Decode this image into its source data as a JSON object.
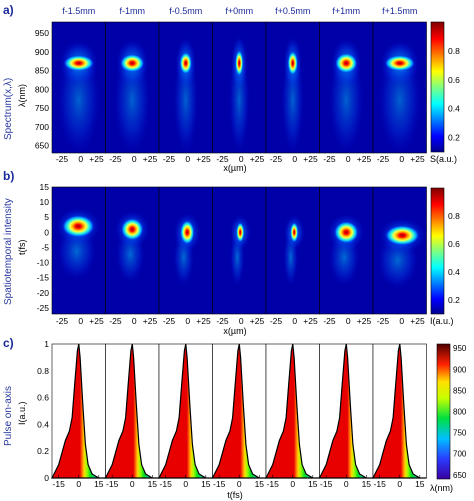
{
  "panels": {
    "a": {
      "label": "a)",
      "side_label": "Spectrum(x,λ)",
      "y_label": "λ(nm)",
      "x_label": "x(µm)",
      "column_titles": [
        "f-1.5mm",
        "f-1mm",
        "f-0.5mm",
        "f+0mm",
        "f+0.5mm",
        "f+1mm",
        "f+1.5mm"
      ],
      "y_ticks": [
        "950",
        "900",
        "850",
        "800",
        "750",
        "700",
        "650"
      ],
      "x_tick_labels": [
        "-25",
        "0",
        "+25"
      ],
      "colorbar_ticks": [
        "0.8",
        "0.6",
        "0.4",
        "0.2"
      ],
      "colorbar_label": "S(a.u.)"
    },
    "b": {
      "label": "b)",
      "side_label": "Spatiotemporal intensity",
      "y_label": "t(fs)",
      "x_label": "x(µm)",
      "y_ticks": [
        "15",
        "10",
        "5",
        "0",
        "-5",
        "-10",
        "-15",
        "-20",
        "-25"
      ],
      "x_tick_labels": [
        "-25",
        "0",
        "+25"
      ],
      "colorbar_ticks": [
        "0.8",
        "0.6",
        "0.4",
        "0.2"
      ],
      "colorbar_label": "I(a.u.)"
    },
    "c": {
      "label": "c)",
      "side_label": "Pulse on-axis",
      "y_label": "I(a.u.)",
      "x_label": "t(fs)",
      "y_ticks": [
        "1",
        "0.8",
        "0.6",
        "0.4",
        "0.2",
        "0"
      ],
      "x_tick_labels": [
        "-15",
        "0",
        "15"
      ],
      "colorbar_ticks": [
        "950",
        "900",
        "850",
        "800",
        "750",
        "700",
        "650"
      ],
      "colorbar_label": "λ(nm)"
    }
  },
  "chart_data": [
    {
      "type": "heatmap",
      "panel": "a",
      "description_values": "spectral peak per column (x µm, λ nm, relative width)",
      "columns": [
        "f-1.5mm",
        "f-1mm",
        "f-0.5mm",
        "f+0mm",
        "f+0.5mm",
        "f+1mm",
        "f+1.5mm"
      ],
      "peak_wavelength_nm": [
        870,
        870,
        870,
        870,
        870,
        870,
        870
      ],
      "peak_x_um": [
        0,
        0,
        0,
        0,
        0,
        0,
        0
      ],
      "xlim": [
        -40,
        40
      ],
      "ylim": [
        630,
        980
      ],
      "colorbar_range": [
        0.1,
        1.0
      ]
    },
    {
      "type": "heatmap",
      "panel": "b",
      "columns": [
        "f-1.5mm",
        "f-1mm",
        "f-0.5mm",
        "f+0mm",
        "f+0.5mm",
        "f+1mm",
        "f+1.5mm"
      ],
      "peak_time_fs": [
        2,
        1,
        0,
        0,
        0,
        0,
        -1
      ],
      "xlim": [
        -40,
        40
      ],
      "ylim": [
        -27,
        15
      ],
      "colorbar_range": [
        0.1,
        1.0
      ]
    },
    {
      "type": "area",
      "panel": "c",
      "columns": [
        "f-1.5mm",
        "f-1mm",
        "f-0.5mm",
        "f+0mm",
        "f+0.5mm",
        "f+1mm",
        "f+1.5mm"
      ],
      "x": [
        -20,
        -15,
        -10,
        -7,
        -5,
        -3,
        -1,
        0,
        1,
        3,
        5,
        7,
        10,
        15,
        20
      ],
      "series": [
        {
          "values": [
            0,
            0.1,
            0.28,
            0.35,
            0.45,
            0.7,
            0.95,
            1.0,
            0.9,
            0.55,
            0.25,
            0.1,
            0.03,
            0,
            0
          ]
        }
      ],
      "xlim": [
        -20,
        20
      ],
      "ylim": [
        0,
        1
      ],
      "colorbar_range": [
        640,
        960
      ]
    }
  ]
}
